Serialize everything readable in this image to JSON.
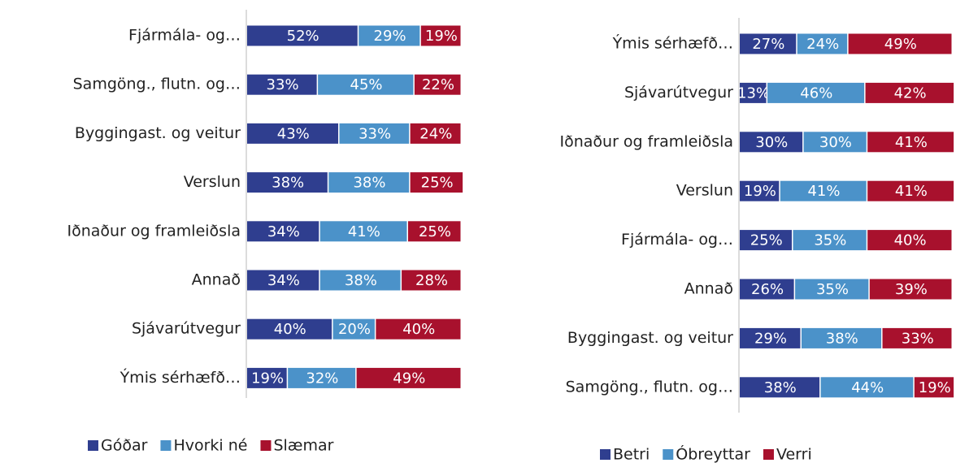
{
  "chart_data": [
    {
      "type": "bar",
      "orientation": "horizontal",
      "stacked": true,
      "xlim": [
        0,
        100
      ],
      "legend": "bottom",
      "categories": [
        "Fjármála- og…",
        "Samgöng., flutn. og…",
        "Byggingast. og veitur",
        "Verslun",
        "Iðnaður og framleiðsla",
        "Annað",
        "Sjávarútvegur",
        "Ýmis sérhæfð…"
      ],
      "series": [
        {
          "name": "Góðar",
          "color": "#2f3e8f",
          "values": [
            52,
            33,
            43,
            38,
            34,
            34,
            40,
            19
          ],
          "value_labels": [
            "52%",
            "33%",
            "43%",
            "38%",
            "34%",
            "34%",
            "40%",
            "19%"
          ]
        },
        {
          "name": "Hvorki né",
          "color": "#4b92c9",
          "values": [
            29,
            45,
            33,
            38,
            41,
            38,
            20,
            32
          ],
          "value_labels": [
            "29%",
            "45%",
            "33%",
            "38%",
            "41%",
            "38%",
            "20%",
            "32%"
          ]
        },
        {
          "name": "Slæmar",
          "color": "#a8112d",
          "values": [
            19,
            22,
            24,
            25,
            25,
            28,
            40,
            49
          ],
          "value_labels": [
            "19%",
            "22%",
            "24%",
            "25%",
            "25%",
            "28%",
            "40%",
            "49%"
          ]
        }
      ]
    },
    {
      "type": "bar",
      "orientation": "horizontal",
      "stacked": true,
      "xlim": [
        0,
        100
      ],
      "legend": "bottom",
      "categories": [
        "Ýmis sérhæfð…",
        "Sjávarútvegur",
        "Iðnaður og framleiðsla",
        "Verslun",
        "Fjármála- og…",
        "Annað",
        "Byggingast. og veitur",
        "Samgöng., flutn. og…"
      ],
      "series": [
        {
          "name": "Betri",
          "color": "#2f3e8f",
          "values": [
            27,
            13,
            30,
            19,
            25,
            26,
            29,
            38
          ],
          "value_labels": [
            "27%",
            "13%",
            "30%",
            "19%",
            "25%",
            "26%",
            "29%",
            "38%"
          ]
        },
        {
          "name": "Óbreyttar",
          "color": "#4b92c9",
          "values": [
            24,
            46,
            30,
            41,
            35,
            35,
            38,
            44
          ],
          "value_labels": [
            "24%",
            "46%",
            "30%",
            "41%",
            "35%",
            "35%",
            "38%",
            "44%"
          ]
        },
        {
          "name": "Verri",
          "color": "#a8112d",
          "values": [
            49,
            42,
            41,
            41,
            40,
            39,
            33,
            19
          ],
          "value_labels": [
            "49%",
            "42%",
            "41%",
            "41%",
            "40%",
            "39%",
            "33%",
            "19%"
          ]
        }
      ]
    }
  ]
}
